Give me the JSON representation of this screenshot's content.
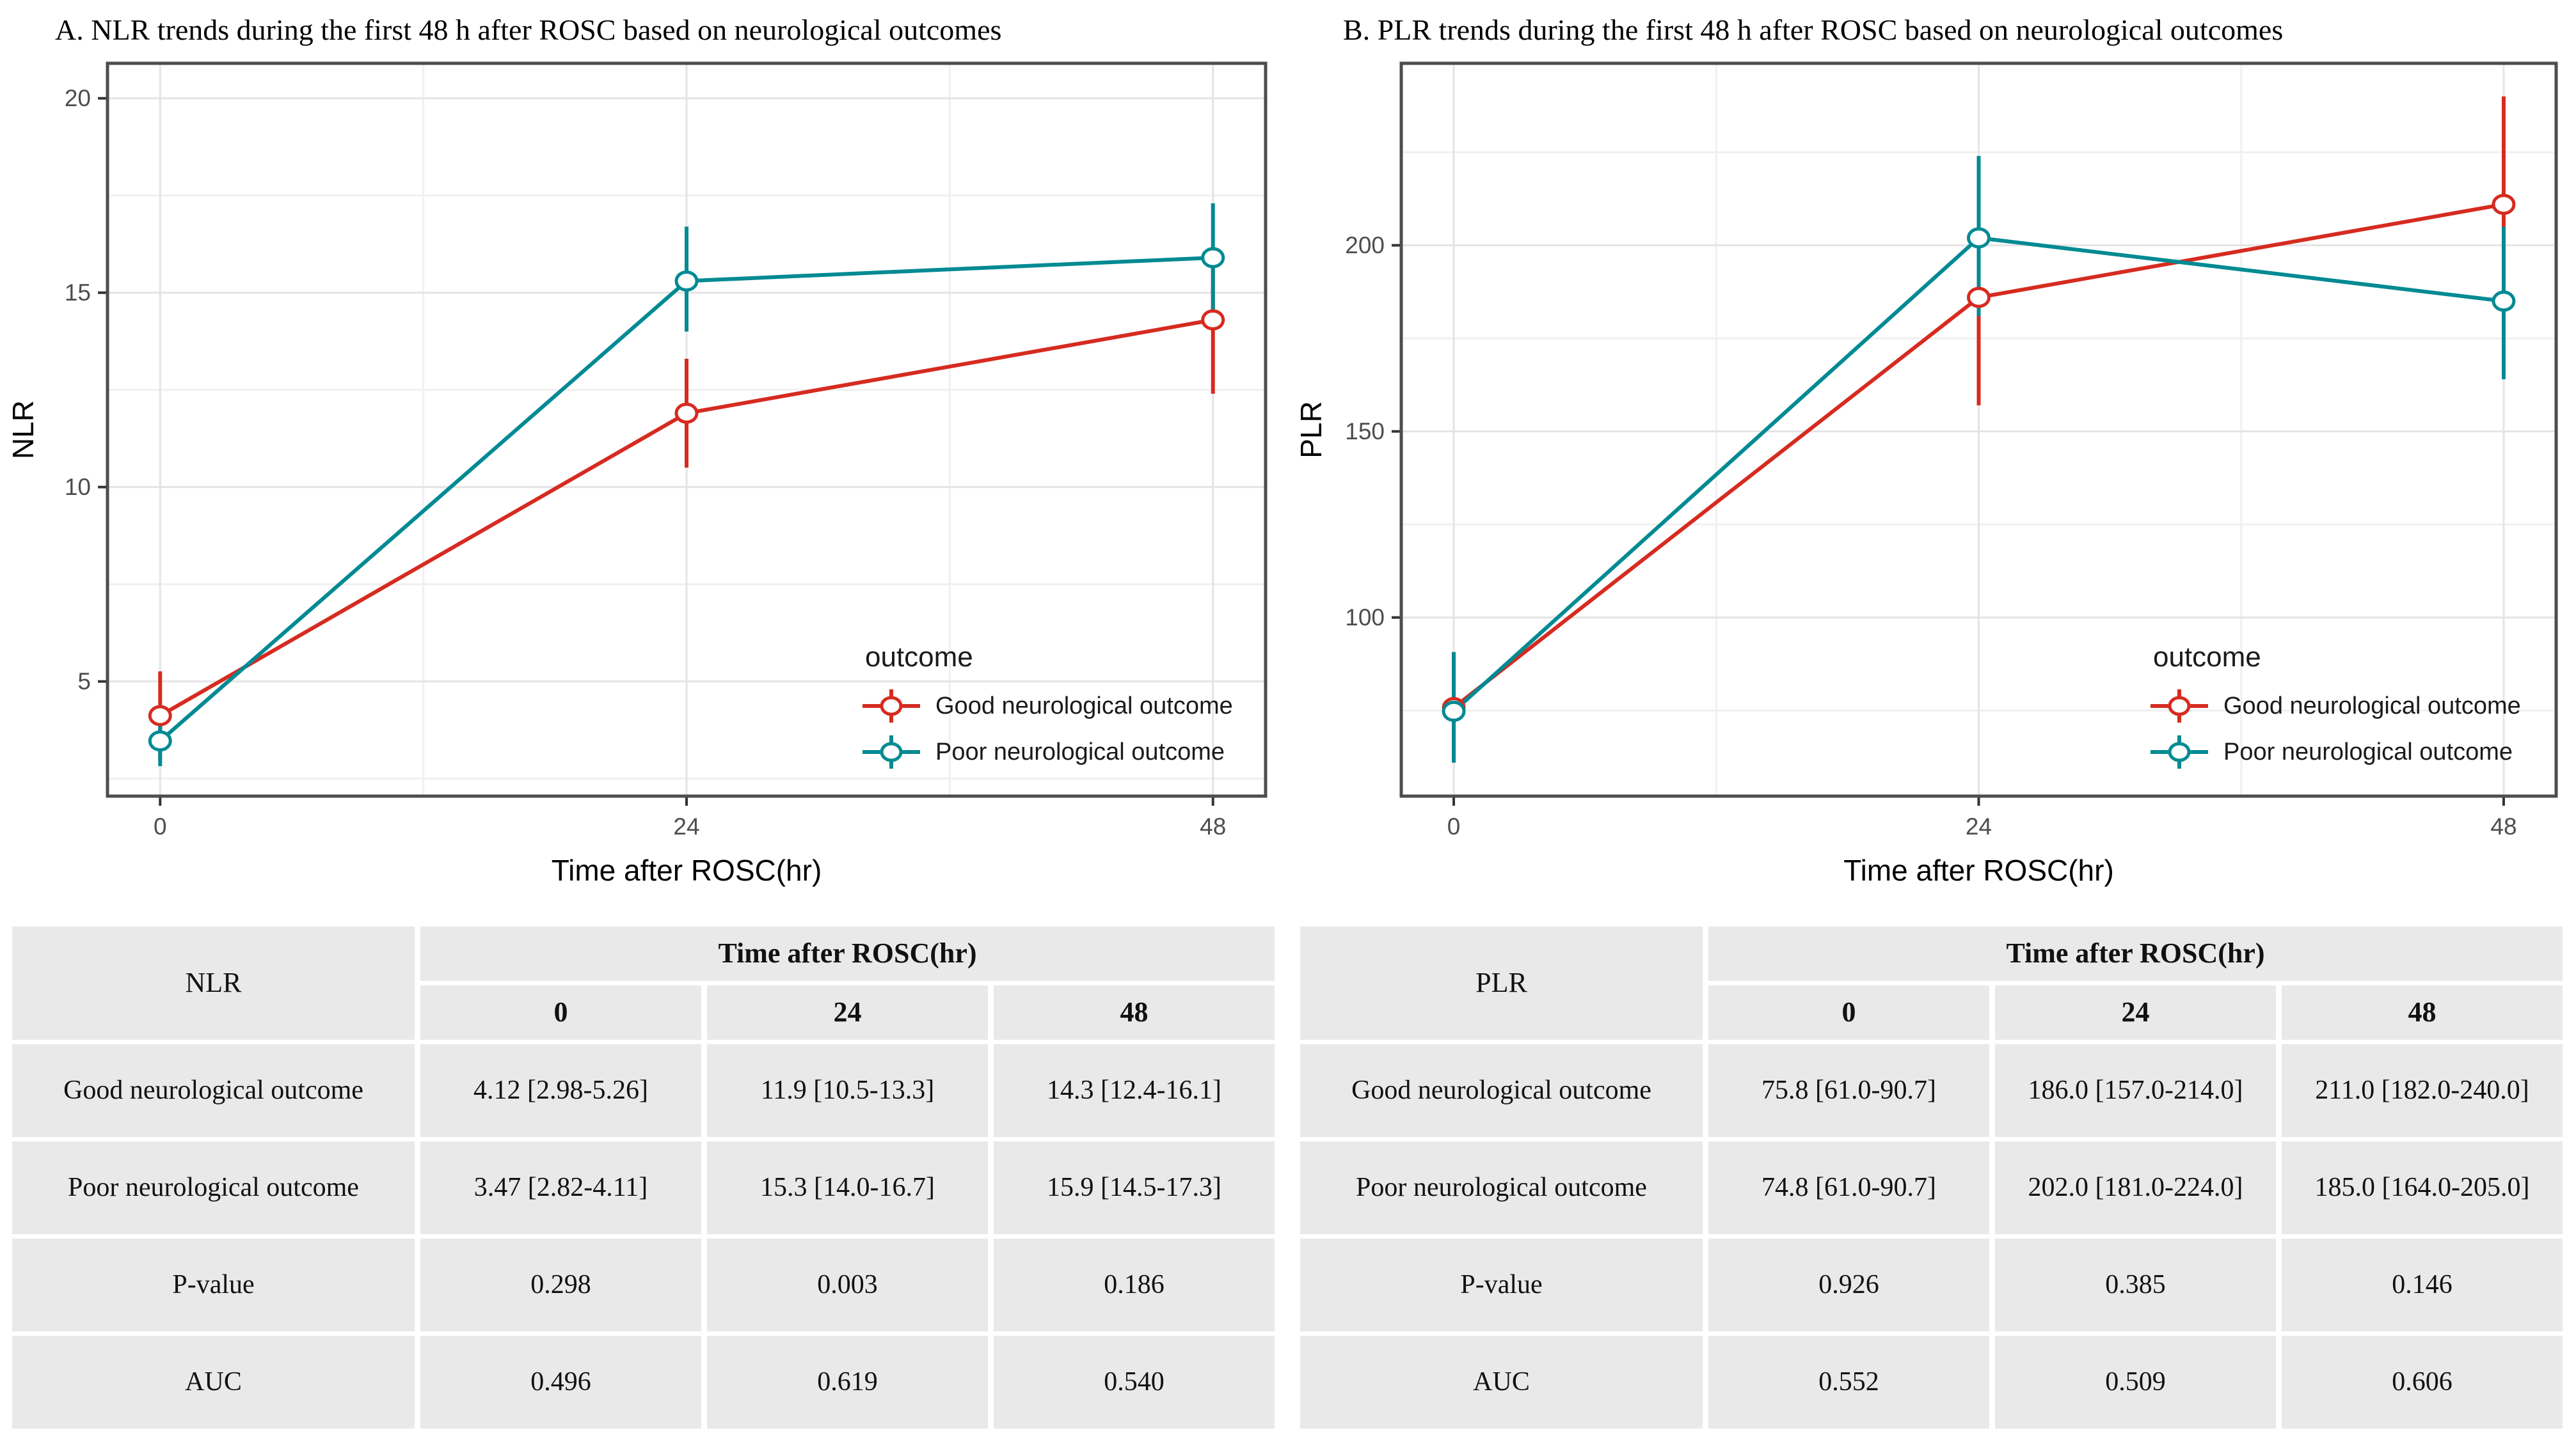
{
  "page_background": "#ffffff",
  "style": {
    "accent_red": "#d62b20",
    "accent_teal": "#008a93",
    "grid_major": "#e4e4e4",
    "grid_minor": "#f0f0f0",
    "panel_border": "#4d4d4d",
    "tick_color": "#333333",
    "tick_text_color": "#4d4d4d",
    "table_cell_bg": "#e9e9e9"
  },
  "panels": [
    {
      "title": "A. NLR trends during the first 48 h after ROSC based on neurological outcomes",
      "table": {
        "row_header": "NLR",
        "col_group": "Time after ROSC(hr)",
        "cols": [
          "0",
          "24",
          "48"
        ],
        "rows": [
          {
            "label": "Good neurological outcome",
            "cells": [
              "4.12 [2.98-5.26]",
              "11.9 [10.5-13.3]",
              "14.3 [12.4-16.1]"
            ]
          },
          {
            "label": "Poor neurological outcome",
            "cells": [
              "3.47 [2.82-4.11]",
              "15.3 [14.0-16.7]",
              "15.9 [14.5-17.3]"
            ]
          },
          {
            "label": "P-value",
            "cells": [
              "0.298",
              "0.003",
              "0.186"
            ]
          },
          {
            "label": "AUC",
            "cells": [
              "0.496",
              "0.619",
              "0.540"
            ]
          }
        ]
      }
    },
    {
      "title": "B. PLR trends during the first 48 h after ROSC based on neurological outcomes",
      "table": {
        "row_header": "PLR",
        "col_group": "Time after ROSC(hr)",
        "cols": [
          "0",
          "24",
          "48"
        ],
        "rows": [
          {
            "label": "Good neurological outcome",
            "cells": [
              "75.8 [61.0-90.7]",
              "186.0 [157.0-214.0]",
              "211.0 [182.0-240.0]"
            ]
          },
          {
            "label": "Poor neurological outcome",
            "cells": [
              "74.8 [61.0-90.7]",
              "202.0 [181.0-224.0]",
              "185.0 [164.0-205.0]"
            ]
          },
          {
            "label": "P-value",
            "cells": [
              "0.926",
              "0.385",
              "0.146"
            ]
          },
          {
            "label": "AUC",
            "cells": [
              "0.552",
              "0.509",
              "0.606"
            ]
          }
        ]
      }
    }
  ],
  "chart_data": [
    {
      "type": "line",
      "title": "A. NLR trends during the first 48 h after ROSC based on neurological outcomes",
      "x": [
        0,
        24,
        48
      ],
      "xlabel": "Time after ROSC(hr)",
      "ylabel": "NLR",
      "xlim": [
        -2.4,
        50.4
      ],
      "ylim": [
        2.05,
        20.9
      ],
      "xticks": [
        0,
        24,
        48
      ],
      "xminor": [
        12,
        36
      ],
      "yticks": [
        5,
        10,
        15,
        20
      ],
      "yminor": [
        2.5,
        7.5,
        12.5,
        17.5
      ],
      "grid": true,
      "legend_title": "outcome",
      "legend_position": "inside bottom-right",
      "series": [
        {
          "name": "Good neurological outcome",
          "color": "#d62b20",
          "values": [
            4.12,
            11.9,
            14.3
          ],
          "lower": [
            2.98,
            10.5,
            12.4
          ],
          "upper": [
            5.26,
            13.3,
            16.1
          ]
        },
        {
          "name": "Poor neurological outcome",
          "color": "#008a93",
          "values": [
            3.47,
            15.3,
            15.9
          ],
          "lower": [
            2.82,
            14.0,
            14.5
          ],
          "upper": [
            4.11,
            16.7,
            17.3
          ]
        }
      ]
    },
    {
      "type": "line",
      "title": "B. PLR trends during the first 48 h after ROSC based on neurological outcomes",
      "x": [
        0,
        24,
        48
      ],
      "xlabel": "Time after ROSC(hr)",
      "ylabel": "PLR",
      "xlim": [
        -2.4,
        50.4
      ],
      "ylim": [
        52,
        248.9
      ],
      "xticks": [
        0,
        24,
        48
      ],
      "xminor": [
        12,
        36
      ],
      "yticks": [
        100,
        150,
        200
      ],
      "yminor": [
        75,
        125,
        175,
        225
      ],
      "grid": true,
      "legend_title": "outcome",
      "legend_position": "inside bottom-right",
      "series": [
        {
          "name": "Good neurological outcome",
          "color": "#d62b20",
          "values": [
            75.8,
            186.0,
            211.0
          ],
          "lower": [
            61.0,
            157.0,
            182.0
          ],
          "upper": [
            90.7,
            214.0,
            240.0
          ]
        },
        {
          "name": "Poor neurological outcome",
          "color": "#008a93",
          "values": [
            74.8,
            202.0,
            185.0
          ],
          "lower": [
            61.0,
            181.0,
            164.0
          ],
          "upper": [
            90.7,
            224.0,
            205.0
          ]
        }
      ]
    }
  ]
}
